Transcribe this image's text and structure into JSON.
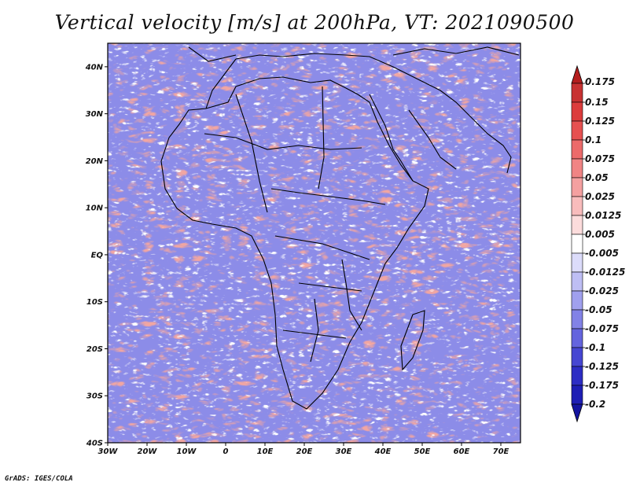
{
  "title": "Vertical velocity [m/s] at 200hPa, VT: 2021090500",
  "footer": "GrADS: IGES/COLA",
  "map": {
    "lon_range": [
      -30,
      75
    ],
    "lat_range": [
      -40,
      45
    ],
    "lon_ticks": [
      {
        "value": -30,
        "label": "30W"
      },
      {
        "value": -20,
        "label": "20W"
      },
      {
        "value": -10,
        "label": "10W"
      },
      {
        "value": 0,
        "label": "0"
      },
      {
        "value": 10,
        "label": "10E"
      },
      {
        "value": 20,
        "label": "20E"
      },
      {
        "value": 30,
        "label": "30E"
      },
      {
        "value": 40,
        "label": "40E"
      },
      {
        "value": 50,
        "label": "50E"
      },
      {
        "value": 60,
        "label": "60E"
      },
      {
        "value": 70,
        "label": "70E"
      }
    ],
    "lat_ticks": [
      {
        "value": 40,
        "label": "40N"
      },
      {
        "value": 30,
        "label": "30N"
      },
      {
        "value": 20,
        "label": "20N"
      },
      {
        "value": 10,
        "label": "10N"
      },
      {
        "value": 0,
        "label": "EQ"
      },
      {
        "value": -10,
        "label": "10S"
      },
      {
        "value": -20,
        "label": "20S"
      },
      {
        "value": -30,
        "label": "30S"
      },
      {
        "value": -40,
        "label": "40S"
      }
    ],
    "field_colors": {
      "positive": "#e0605a",
      "negative": "#6a6ae0",
      "neutral": "#ffffff"
    }
  },
  "colorbar": {
    "levels": [
      "0.175",
      "0.15",
      "0.125",
      "0.1",
      "0.075",
      "0.05",
      "0.025",
      "0.0125",
      "0.005",
      "-0.005",
      "-0.0125",
      "-0.025",
      "-0.05",
      "-0.075",
      "-0.1",
      "-0.125",
      "-0.175",
      "-0.2"
    ],
    "colors": [
      "#b41e1e",
      "#c83232",
      "#dc3c3c",
      "#e65050",
      "#ec6a6a",
      "#f08484",
      "#f4a0a0",
      "#f8bcbc",
      "#fcdcdc",
      "#ffffff",
      "#dcdcfa",
      "#bebef4",
      "#a0a0ee",
      "#8282e6",
      "#6464de",
      "#4646d2",
      "#2d2dc4",
      "#1e1eb4",
      "#1414a0"
    ]
  }
}
